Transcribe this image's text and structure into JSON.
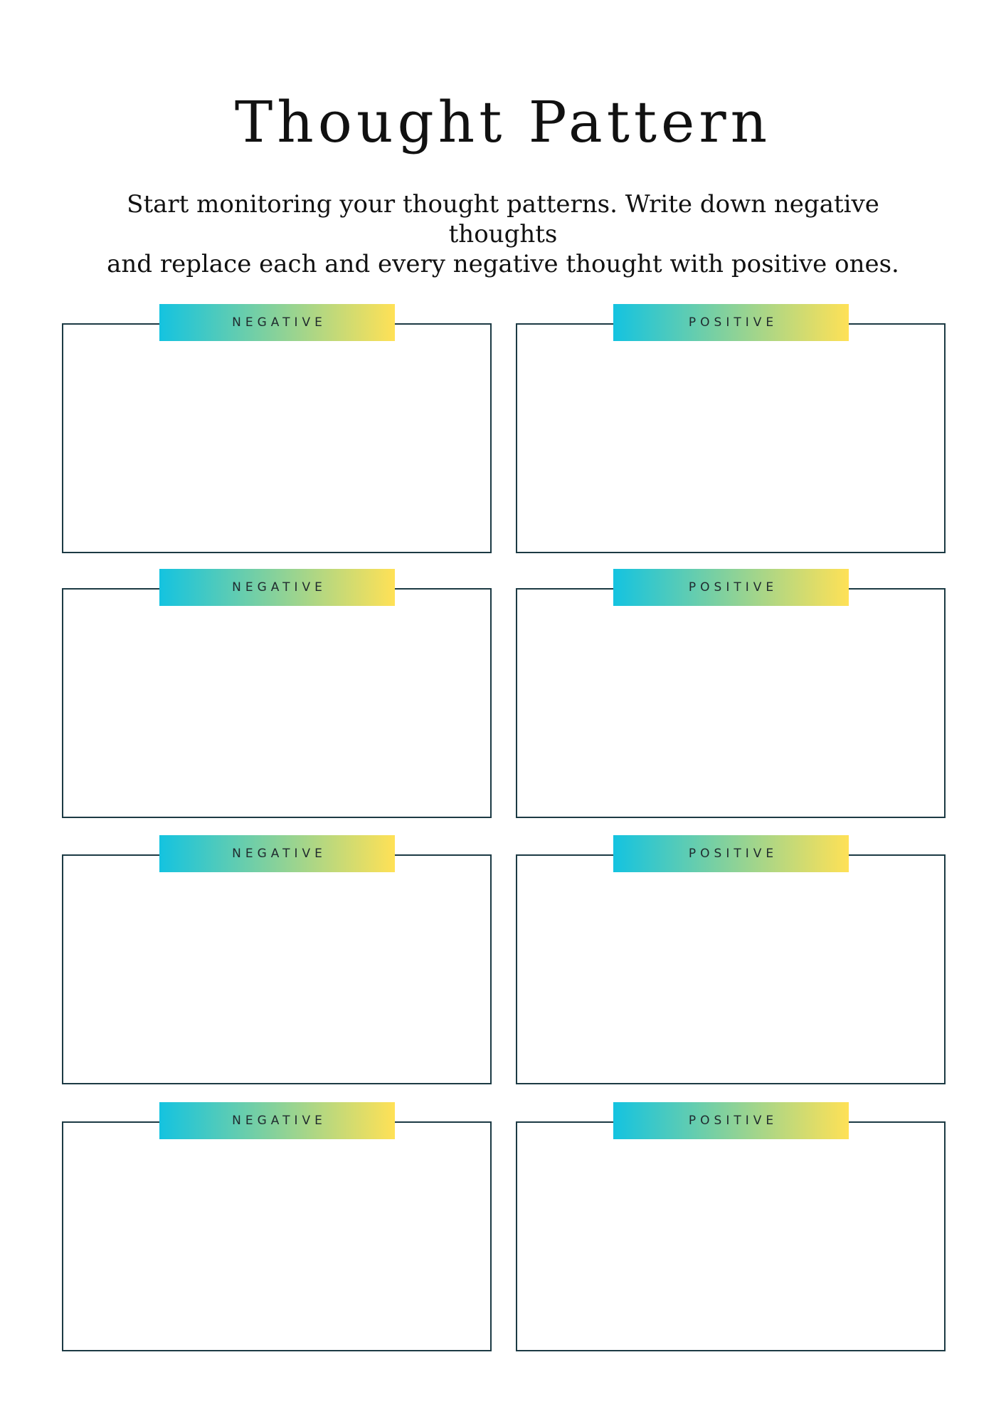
{
  "page": {
    "title": "Thought Pattern",
    "subtitle_line1": "Start monitoring your thought patterns. Write down negative thoughts",
    "subtitle_line2": "and replace each and every negative thought with positive ones."
  },
  "colors": {
    "border": "#1c3a44",
    "gradient_start": "#14c3e0",
    "gradient_end": "#ffe156"
  },
  "rows": [
    {
      "negative_label": "NEGATIVE",
      "positive_label": "POSITIVE"
    },
    {
      "negative_label": "NEGATIVE",
      "positive_label": "POSITIVE"
    },
    {
      "negative_label": "NEGATIVE",
      "positive_label": "POSITIVE"
    },
    {
      "negative_label": "NEGATIVE",
      "positive_label": "POSITIVE"
    }
  ]
}
